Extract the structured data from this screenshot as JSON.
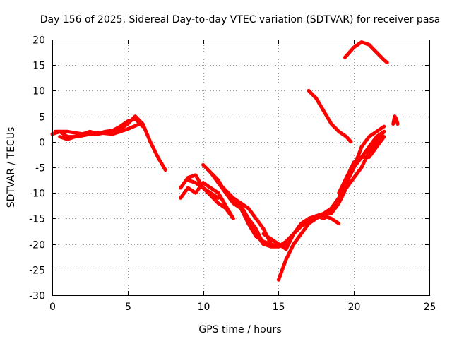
{
  "chart_data": {
    "type": "line",
    "title": "Day 156 of 2025, Sidereal Day-to-day VTEC variation (SDTVAR) for receiver pasa",
    "xlabel": "GPS time / hours",
    "ylabel": "SDTVAR / TECUs",
    "xlim": [
      0,
      25
    ],
    "ylim": [
      -30,
      20
    ],
    "x_ticks": [
      0,
      5,
      10,
      15,
      20,
      25
    ],
    "y_ticks": [
      -30,
      -25,
      -20,
      -15,
      -10,
      -5,
      0,
      5,
      10,
      15,
      20
    ],
    "grid": true,
    "color": "#ff0000",
    "series": [
      {
        "name": "arc-1",
        "x": [
          0,
          0.5,
          1,
          1.5,
          2,
          2.5,
          3,
          3.5,
          4,
          4.5,
          5,
          5.5,
          6,
          6.5,
          7,
          7.5
        ],
        "y": [
          1.5,
          2,
          1,
          1,
          1.2,
          1.5,
          1.5,
          1.8,
          2,
          2.5,
          3.5,
          5,
          3.5,
          0,
          -3,
          -5.5
        ]
      },
      {
        "name": "arc-2",
        "x": [
          0.5,
          1,
          1.5,
          2,
          2.5,
          3,
          3.5,
          4,
          4.5,
          5,
          5.5,
          6
        ],
        "y": [
          1,
          0.5,
          1,
          1.5,
          2,
          1.5,
          2,
          2.2,
          3,
          4,
          4.5,
          3
        ]
      },
      {
        "name": "arc-3",
        "x": [
          0.2,
          1,
          2,
          3,
          4,
          5,
          5.8
        ],
        "y": [
          2,
          2,
          1.5,
          1.8,
          1.5,
          2.5,
          3.5
        ]
      },
      {
        "name": "arc-4",
        "x": [
          8.5,
          9,
          9.5,
          10,
          10.5,
          11
        ],
        "y": [
          -9,
          -7,
          -6.5,
          -9,
          -10,
          -11
        ]
      },
      {
        "name": "arc-5",
        "x": [
          8.5,
          9,
          9.5,
          10,
          10.5,
          11,
          11.5,
          12
        ],
        "y": [
          -11,
          -9,
          -10,
          -8,
          -9,
          -10,
          -12.5,
          -15
        ]
      },
      {
        "name": "arc-6",
        "x": [
          9,
          9.5,
          10,
          10.5,
          11,
          11.5,
          12
        ],
        "y": [
          -7.5,
          -8,
          -9,
          -10.5,
          -12,
          -13,
          -15
        ]
      },
      {
        "name": "arc-7",
        "x": [
          10,
          10.5,
          11,
          11.5,
          12,
          12.5,
          13
        ],
        "y": [
          -4.5,
          -6,
          -8,
          -10,
          -12,
          -13,
          -16
        ]
      },
      {
        "name": "arc-8",
        "x": [
          10.5,
          11,
          11.5,
          12,
          12.5,
          13,
          13.5,
          14
        ],
        "y": [
          -6,
          -7.5,
          -10,
          -12,
          -13,
          -15,
          -17,
          -20
        ]
      },
      {
        "name": "arc-9",
        "x": [
          11,
          11.5,
          12,
          12.5,
          13,
          13.5,
          14,
          14.5
        ],
        "y": [
          -8,
          -9.5,
          -11,
          -12,
          -13,
          -15,
          -17,
          -20
        ]
      },
      {
        "name": "arc-10",
        "x": [
          12,
          12.5,
          13,
          13.5,
          14,
          14.5,
          15,
          15.5,
          16
        ],
        "y": [
          -11,
          -12.5,
          -15,
          -18,
          -20,
          -20.5,
          -20.5,
          -20,
          -18
        ]
      },
      {
        "name": "arc-11",
        "x": [
          13,
          13.5,
          14,
          14.5,
          15,
          15.5,
          16
        ],
        "y": [
          -16,
          -18.5,
          -19.5,
          -20,
          -20.5,
          -19.5,
          -18
        ]
      },
      {
        "name": "arc-12",
        "x": [
          14,
          14.5,
          15,
          15.5,
          16,
          16.5,
          17,
          17.5,
          18
        ],
        "y": [
          -18,
          -19,
          -20,
          -21,
          -18,
          -16,
          -15,
          -14.5,
          -15
        ]
      },
      {
        "name": "arc-13",
        "x": [
          15,
          15.5,
          16,
          16.5,
          17,
          17.5,
          18,
          18.5,
          19,
          19.5,
          20,
          20.5,
          21,
          21.5,
          22
        ],
        "y": [
          -27,
          -23,
          -20,
          -18,
          -16,
          -15,
          -14,
          -13,
          -11,
          -8,
          -5,
          -3,
          -1,
          1,
          2
        ]
      },
      {
        "name": "arc-14",
        "x": [
          15.5,
          16,
          16.5,
          17,
          17.5,
          18,
          18.5,
          19,
          19.5,
          20,
          20.5,
          21,
          21.5,
          22
        ],
        "y": [
          -20,
          -18,
          -16.5,
          -15.5,
          -14.5,
          -14,
          -14,
          -12,
          -9,
          -7,
          -5,
          -2,
          0,
          2
        ]
      },
      {
        "name": "arc-15",
        "x": [
          17,
          17.5,
          18,
          18.5,
          19
        ],
        "y": [
          -15,
          -14.5,
          -14.5,
          -15,
          -16
        ]
      },
      {
        "name": "arc-16",
        "x": [
          18,
          18.5,
          19,
          19.5,
          20,
          20.5,
          21,
          21.5,
          22
        ],
        "y": [
          -15,
          -13,
          -11,
          -8,
          -5,
          -1,
          1,
          2,
          3
        ]
      },
      {
        "name": "arc-17",
        "x": [
          19,
          19.5,
          20,
          20.5,
          21,
          21.5,
          22
        ],
        "y": [
          -10,
          -7,
          -4,
          -3,
          -3,
          -1,
          1
        ]
      },
      {
        "name": "arc-18",
        "x": [
          17,
          17.5,
          18,
          18.5,
          19,
          19.5,
          19.8
        ],
        "y": [
          10,
          8.5,
          6,
          3.5,
          2,
          1,
          0
        ]
      },
      {
        "name": "arc-19",
        "x": [
          19.4,
          19.7,
          20,
          20.5,
          21,
          21.5,
          22,
          22.2
        ],
        "y": [
          16.5,
          17.5,
          18.5,
          19.5,
          19,
          17.5,
          16,
          15.5
        ]
      },
      {
        "name": "arc-20",
        "x": [
          22.6,
          22.7,
          22.8,
          22.9
        ],
        "y": [
          3.5,
          5,
          4.5,
          3.5
        ]
      }
    ]
  }
}
